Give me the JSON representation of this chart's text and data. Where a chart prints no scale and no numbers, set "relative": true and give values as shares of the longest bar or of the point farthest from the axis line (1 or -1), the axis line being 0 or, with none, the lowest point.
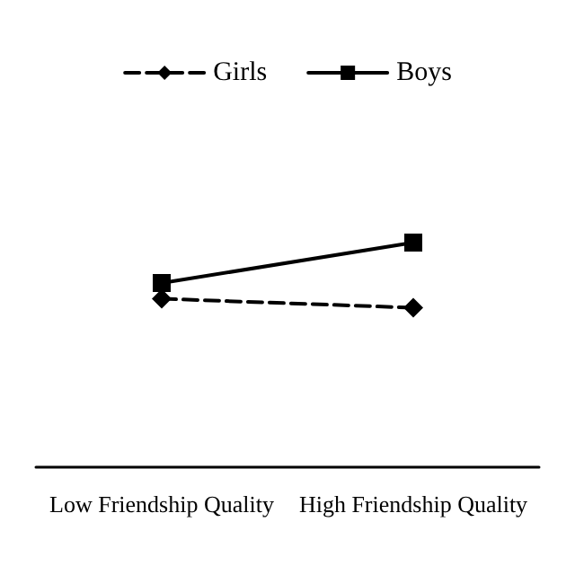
{
  "chart_data": {
    "type": "line",
    "relative": true,
    "categories": [
      "Low Friendship Quality",
      "High Friendship Quality"
    ],
    "series": [
      {
        "name": "Girls",
        "color": "#000000",
        "values": [
          0.75,
          0.71
        ],
        "marker": "diamond",
        "line_style": "dashed"
      },
      {
        "name": "Boys",
        "color": "#000000",
        "values": [
          0.82,
          1
        ],
        "marker": "square",
        "line_style": "solid"
      }
    ],
    "legend": "top",
    "grid": false
  }
}
